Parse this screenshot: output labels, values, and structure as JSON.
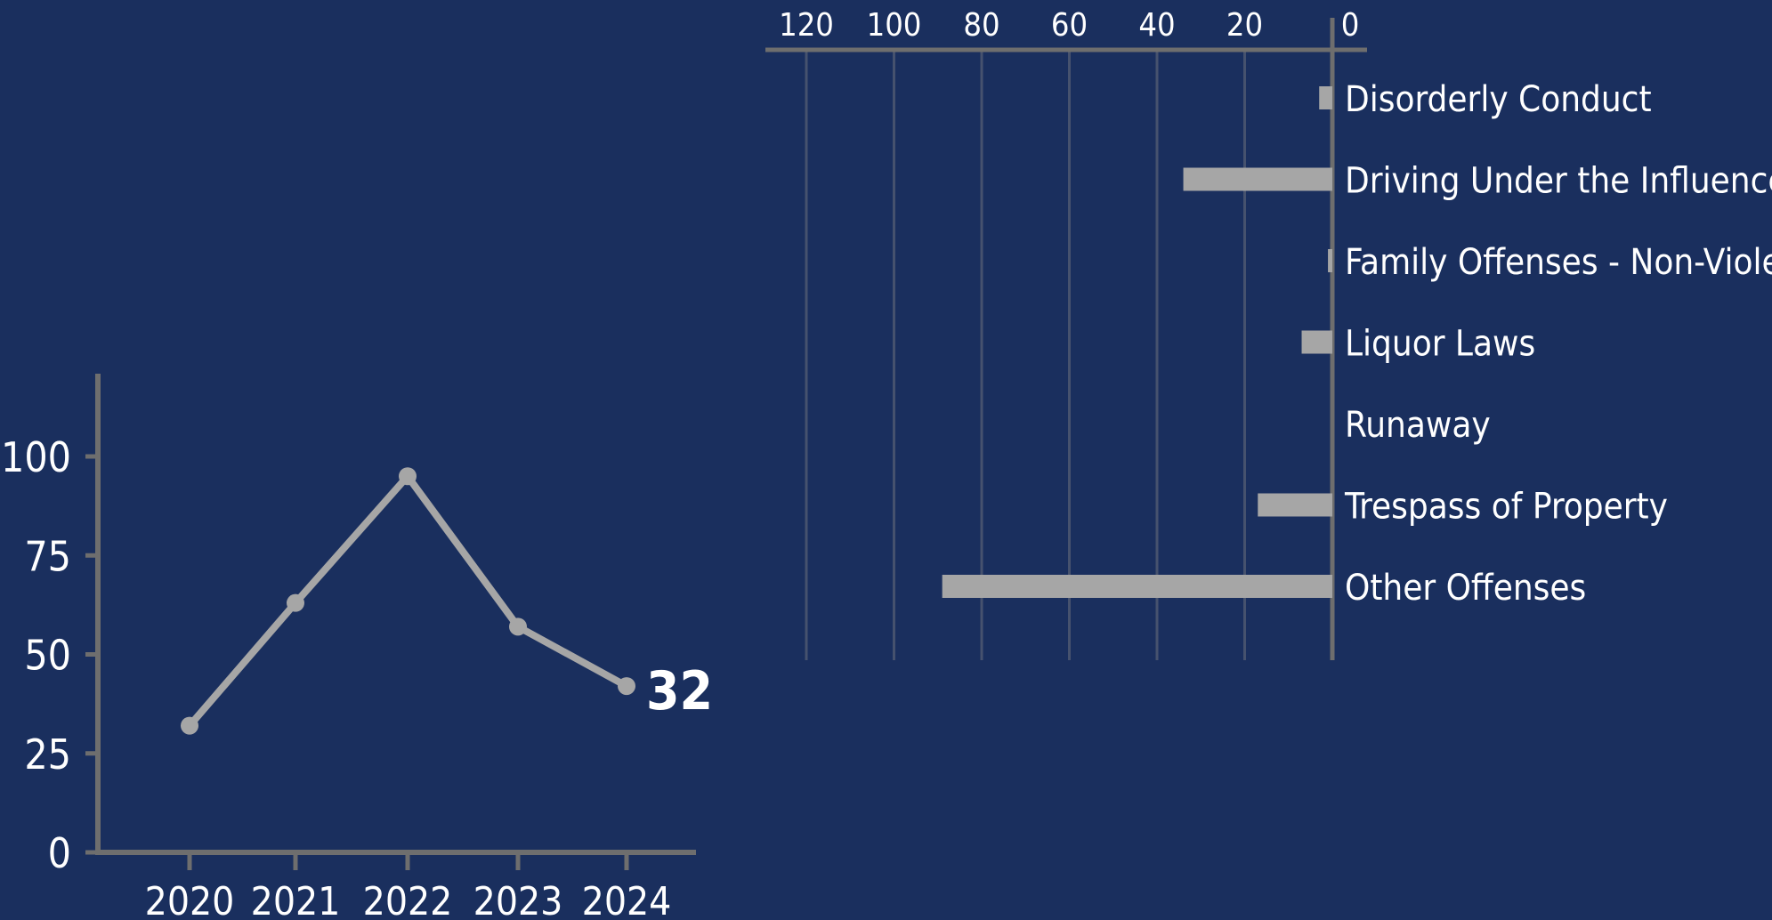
{
  "colors": {
    "background": "#1a2f5e",
    "axis": "#6e6e6e",
    "grid": "#46526e",
    "bar": "#a6a6a6",
    "line": "#a6a6a6",
    "text": "#ffffff"
  },
  "chart_data": [
    {
      "type": "line",
      "x": [
        "2020",
        "2021",
        "2022",
        "2023",
        "2024"
      ],
      "series": [
        {
          "values": [
            32,
            63,
            95,
            57,
            42
          ]
        }
      ],
      "yticks": [
        "0",
        "25",
        "50",
        "75",
        "100"
      ],
      "ylim": [
        0,
        120
      ],
      "grid": false,
      "end_label": "32"
    },
    {
      "type": "bar",
      "orientation": "horizontal",
      "x_direction": "reversed",
      "categories": [
        "Disorderly Conduct",
        "Driving Under the Influence",
        "Family Offenses - Non-Violent",
        "Liquor Laws",
        "Runaway",
        "Trespass of Property",
        "Other Offenses"
      ],
      "values": [
        3,
        34,
        1,
        7,
        0,
        17,
        89
      ],
      "xticks": [
        "120",
        "100",
        "80",
        "60",
        "40",
        "20",
        "0"
      ],
      "xlim": [
        0,
        130
      ],
      "axis_position": "top",
      "grid": true
    }
  ]
}
